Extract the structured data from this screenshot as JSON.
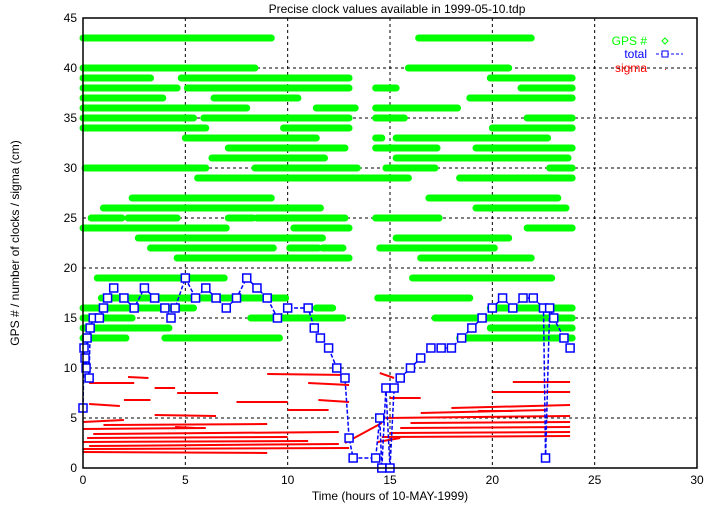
{
  "chart_data": {
    "type": "scatter",
    "title": "Precise clock values available in 1999-05-10.tdp",
    "xlabel": "Time (hours of 10-MAY-1999)",
    "ylabel": "GPS # / number of clocks / sigma (cm)",
    "xlim": [
      0,
      30
    ],
    "ylim": [
      0,
      45
    ],
    "xticks": [
      0,
      5,
      10,
      15,
      20,
      25,
      30
    ],
    "yticks": [
      0,
      5,
      10,
      15,
      20,
      25,
      30,
      35,
      40,
      45
    ],
    "grid": true,
    "legend_position": "top-right",
    "colors": {
      "gps": "#00ff00",
      "total": "#0000ff",
      "sigma": "#ff0000"
    },
    "series": [
      {
        "name": "GPS #",
        "marker": "diamond",
        "segments": [
          [
            43,
            0,
            9.2
          ],
          [
            43,
            16.4,
            21.9
          ],
          [
            40,
            0,
            8.4
          ],
          [
            40,
            15.9,
            20.8
          ],
          [
            39,
            0,
            3.3
          ],
          [
            39,
            4.8,
            13.0
          ],
          [
            39,
            19.9,
            23.9
          ],
          [
            38,
            0,
            4.6
          ],
          [
            38,
            5.1,
            13.0
          ],
          [
            38,
            14.3,
            15.3
          ],
          [
            38,
            21.4,
            23.9
          ],
          [
            37,
            0,
            3.9
          ],
          [
            37,
            6.4,
            10.5
          ],
          [
            37,
            18.9,
            23.9
          ],
          [
            36,
            0,
            8.0
          ],
          [
            36,
            11.4,
            13.3
          ],
          [
            36,
            14.3,
            18.3
          ],
          [
            35,
            0,
            5.4
          ],
          [
            35,
            5.9,
            13.0
          ],
          [
            35,
            14.3,
            15.7
          ],
          [
            35,
            21.7,
            23.9
          ],
          [
            34,
            0,
            6.0
          ],
          [
            34,
            9.8,
            13.0
          ],
          [
            34,
            20.0,
            23.9
          ],
          [
            33,
            5.0,
            11.4
          ],
          [
            33,
            14.3,
            14.6
          ],
          [
            33,
            15.3,
            22.7
          ],
          [
            32,
            7.1,
            12.8
          ],
          [
            32,
            14.3,
            17.3
          ],
          [
            32,
            19.2,
            23.9
          ],
          [
            31,
            6.3,
            11.8
          ],
          [
            31,
            15.3,
            23.7
          ],
          [
            30,
            0.1,
            6.0
          ],
          [
            30,
            8.4,
            13.4
          ],
          [
            30,
            14.8,
            17.2
          ],
          [
            30,
            22.8,
            23.9
          ],
          [
            29,
            5.6,
            15.9
          ],
          [
            29,
            18.4,
            23.9
          ],
          [
            27,
            2.4,
            9.2
          ],
          [
            27,
            16.9,
            23.2
          ],
          [
            26,
            1.0,
            11.6
          ],
          [
            26,
            19.2,
            23.6
          ],
          [
            25,
            0.4,
            1.9
          ],
          [
            25,
            2.2,
            4.6
          ],
          [
            25,
            7.1,
            8.3
          ],
          [
            25,
            8.5,
            12.8
          ],
          [
            25,
            14.3,
            17.4
          ],
          [
            24,
            0,
            7.0
          ],
          [
            24,
            10.3,
            13.0
          ],
          [
            24,
            21.7,
            23.9
          ],
          [
            23,
            2.7,
            11.7
          ],
          [
            23,
            15.3,
            20.8
          ],
          [
            22,
            3.3,
            9.3
          ],
          [
            22,
            10.1,
            11.5
          ],
          [
            22,
            11.7,
            12.7
          ],
          [
            22,
            14.5,
            20.1
          ],
          [
            21,
            4.6,
            13.0
          ],
          [
            21,
            16.5,
            21.9
          ],
          [
            19,
            0.7,
            6.9
          ],
          [
            19,
            16.1,
            22.9
          ],
          [
            17,
            0.9,
            9.9
          ],
          [
            17,
            14.4,
            18.9
          ],
          [
            16,
            0,
            5.4
          ],
          [
            16,
            11.4,
            12.2
          ],
          [
            16,
            19.9,
            23.9
          ],
          [
            15,
            0,
            2.4
          ],
          [
            15,
            8.2,
            12.7
          ],
          [
            15,
            17.2,
            23.9
          ],
          [
            14,
            0,
            4.2
          ],
          [
            14,
            19.9,
            23.9
          ],
          [
            13,
            0,
            2.1
          ],
          [
            13,
            4.0,
            9.6
          ],
          [
            13,
            18.4,
            23.9
          ]
        ]
      },
      {
        "name": "total",
        "marker": "square",
        "x": [
          0,
          0.05,
          0.1,
          0.15,
          0.2,
          0.3,
          0.35,
          0.5,
          0.8,
          1.0,
          1.2,
          1.5,
          2.0,
          2.5,
          3.0,
          3.5,
          4.0,
          4.3,
          4.5,
          5.0,
          5.5,
          6.0,
          6.5,
          7.0,
          7.5,
          8.0,
          8.5,
          9.0,
          9.5,
          10.0,
          11.0,
          11.3,
          11.6,
          12.0,
          12.4,
          12.8,
          13.0,
          13.2,
          14.3,
          14.5,
          14.6,
          14.8,
          15.0,
          15.2,
          15.5,
          16.0,
          16.5,
          17.0,
          17.5,
          18.0,
          18.5,
          19.0,
          19.5,
          20.0,
          20.5,
          21.0,
          21.5,
          22.0,
          22.5,
          22.6,
          22.8,
          23.0,
          23.5,
          23.8
        ],
        "values": [
          6,
          12,
          11,
          10,
          13,
          9,
          14,
          15,
          15,
          16,
          17,
          18,
          17,
          16,
          18,
          17,
          16,
          15,
          16,
          19,
          17,
          18,
          17,
          16,
          17,
          19,
          18,
          17,
          15,
          16,
          16,
          14,
          13,
          12,
          10,
          9,
          3,
          1,
          1,
          5,
          0,
          8,
          0,
          8,
          9,
          10,
          11,
          12,
          12,
          12,
          13,
          14,
          15,
          16,
          17,
          16,
          17,
          17,
          16,
          1,
          16,
          15,
          13,
          12
        ]
      },
      {
        "name": "sigma",
        "marker": "dot",
        "segments": [
          [
            0,
            9,
            1.6,
            1.5
          ],
          [
            0,
            13,
            1.9,
            2.0
          ],
          [
            0.3,
            12.5,
            2.2,
            2.4
          ],
          [
            0,
            11,
            2.6,
            2.7
          ],
          [
            0.2,
            10,
            3.0,
            3.1
          ],
          [
            0.5,
            12.5,
            3.4,
            3.6
          ],
          [
            0,
            6,
            3.9,
            4.0
          ],
          [
            1,
            9,
            4.3,
            4.4
          ],
          [
            0,
            2,
            4.6,
            4.8
          ],
          [
            3.5,
            6.5,
            5.3,
            5.2
          ],
          [
            0.3,
            1.8,
            6.4,
            6.2
          ],
          [
            4.5,
            5.5,
            4.1,
            4.0
          ],
          [
            2.0,
            3.3,
            6.8,
            6.8
          ],
          [
            4.6,
            6.6,
            7.5,
            7.5
          ],
          [
            7.5,
            10,
            6.6,
            6.6
          ],
          [
            10,
            12,
            5.8,
            5.8
          ],
          [
            3.5,
            4.5,
            8.0,
            8.0
          ],
          [
            0.3,
            2.5,
            8.5,
            8.5
          ],
          [
            2.2,
            3.2,
            9.1,
            9.0
          ],
          [
            9,
            13,
            9.4,
            9.3
          ],
          [
            11,
            13,
            8.5,
            8.3
          ],
          [
            11.5,
            13,
            6.8,
            6.6
          ],
          [
            12.8,
            14.6,
            2.5,
            4.5
          ],
          [
            14.4,
            15.5,
            2.6,
            3.0
          ],
          [
            14.6,
            23.8,
            3.1,
            3.2
          ],
          [
            15,
            23.8,
            3.5,
            3.6
          ],
          [
            15.5,
            23.8,
            4.0,
            4.1
          ],
          [
            16,
            23.8,
            4.5,
            4.6
          ],
          [
            14.8,
            23.8,
            5.0,
            5.2
          ],
          [
            16.5,
            22.7,
            5.5,
            5.8
          ],
          [
            18,
            23.8,
            6.0,
            6.3
          ],
          [
            20,
            23.8,
            7.6,
            7.6
          ],
          [
            21,
            23.8,
            8.6,
            8.6
          ],
          [
            15,
            16.5,
            7.0,
            7.0
          ],
          [
            14.5,
            15.2,
            9.5,
            9.0
          ],
          [
            19.3,
            21,
            5.7,
            5.7
          ]
        ]
      }
    ]
  }
}
